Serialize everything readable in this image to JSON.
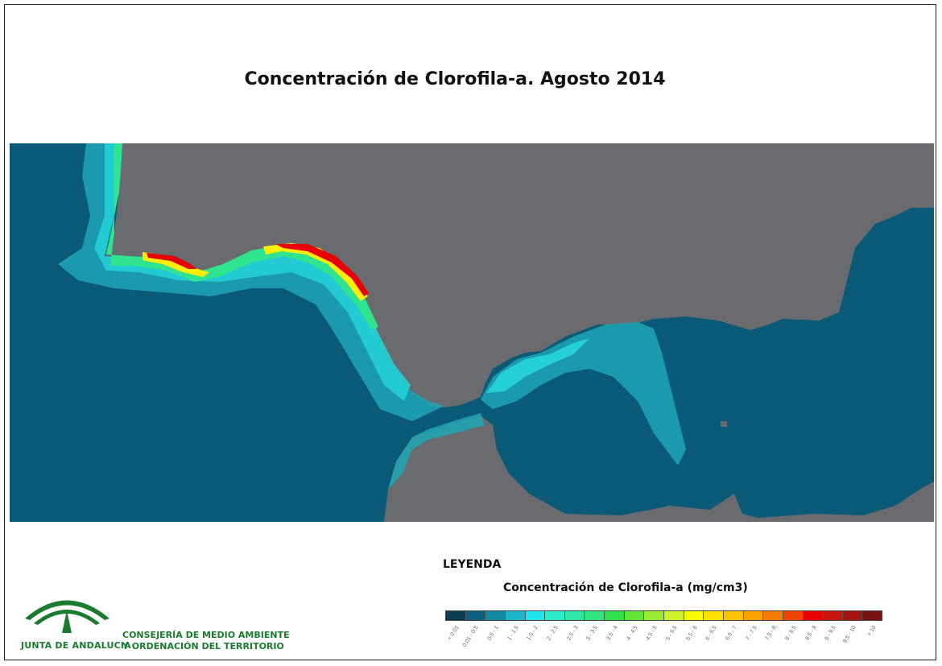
{
  "map": {
    "title": "Concentración de Clorofila-a. Agosto 2014",
    "colors": {
      "ocean": "#0b5a78",
      "land": "#6a6b6e",
      "coastal": "#1fa6b6",
      "bright": "#24d0d6",
      "green": "#2fe38f",
      "yellow": "#ffee00",
      "red": "#e60000",
      "dark": "#5a1010"
    }
  },
  "legend": {
    "title": "LEYENDA",
    "subtitle": "Concentración de Clorofila-a (mg/cm3)",
    "classes": [
      {
        "label": "< 0.01",
        "color": "#0b3d55"
      },
      {
        "label": "0.01 - 0.5",
        "color": "#0d5f7e"
      },
      {
        "label": "0.5 - 1",
        "color": "#148aa2"
      },
      {
        "label": "1 - 1.5",
        "color": "#1cb6cc"
      },
      {
        "label": "1.5 - 2",
        "color": "#22e4ee"
      },
      {
        "label": "2 - 2.5",
        "color": "#2bebc8"
      },
      {
        "label": "2.5 - 3",
        "color": "#30e6a6"
      },
      {
        "label": "3 - 3.5",
        "color": "#30e47e"
      },
      {
        "label": "3.5 - 4",
        "color": "#30df4c"
      },
      {
        "label": "4 - 4.5",
        "color": "#62e438"
      },
      {
        "label": "4.5 - 5",
        "color": "#98ea30"
      },
      {
        "label": "5 - 5.5",
        "color": "#cdf22a"
      },
      {
        "label": "5.5 - 6",
        "color": "#fbfb00"
      },
      {
        "label": "6 - 6.5",
        "color": "#fde100"
      },
      {
        "label": "6.5 - 7",
        "color": "#fcc300"
      },
      {
        "label": "7 - 7.5",
        "color": "#f9a200"
      },
      {
        "label": "7.5 - 8",
        "color": "#f57a00"
      },
      {
        "label": "8 - 8.5",
        "color": "#ef4400"
      },
      {
        "label": "8.5 - 9",
        "color": "#e60000"
      },
      {
        "label": "9 - 9.5",
        "color": "#c8140f"
      },
      {
        "label": "9.5 - 10",
        "color": "#a5140f"
      },
      {
        "label": "> 10",
        "color": "#7a1414"
      }
    ]
  },
  "branding": {
    "logo_text": "JUNTA DE ANDALUCIA",
    "department_line1": "CONSEJERÍA DE MEDIO AMBIENTE",
    "department_line2": "Y ORDENACIÓN DEL TERRITORIO"
  }
}
